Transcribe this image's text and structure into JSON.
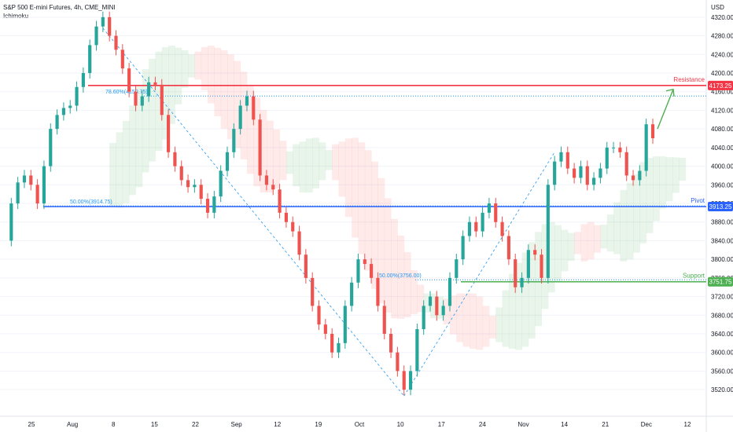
{
  "legend": {
    "title": "S&P 500 E-mini Futures, 4h, CME_MINI",
    "indicator": "Ichimoku"
  },
  "colors": {
    "up": "#26a69a",
    "down": "#ef5350",
    "resistance": "#f23645",
    "pivot": "#2962ff",
    "support": "#4caf50",
    "fib": "#2196f3",
    "cloud_green": "#4caf50",
    "cloud_red": "#ff5252",
    "arrow": "#4caf50",
    "grid": "#f0f3fa"
  },
  "chart_data": {
    "type": "line",
    "title": "S&P 500 E-mini Futures, 4h, CME_MINI",
    "currency_label": "USD",
    "ylim": [
      3500,
      4340
    ],
    "y_ticks": [
      4320,
      4280,
      4240,
      4200,
      4160,
      4120,
      4080,
      4040,
      4000,
      3960,
      3920,
      3880,
      3840,
      3800,
      3760,
      3720,
      3680,
      3640,
      3600,
      3560,
      3520
    ],
    "x_ticks": [
      "25",
      "Aug",
      "8",
      "15",
      "22",
      "Sep",
      "12",
      "19",
      "Oct",
      "10",
      "17",
      "24",
      "Nov",
      "14",
      "21",
      "Dec",
      "12"
    ],
    "series": [
      {
        "values": [
          3840,
          3920,
          3965,
          3980,
          3960,
          3920,
          4000,
          4080,
          4110,
          4125,
          4130,
          4170,
          4200,
          4260,
          4300,
          4320,
          4280,
          4250,
          4210,
          4160,
          4130,
          4150,
          4180,
          4175,
          4110,
          4030,
          4000,
          3970,
          3955,
          3960,
          3930,
          3900,
          3935,
          3990,
          4030,
          4080,
          4130,
          4150,
          4100,
          3980,
          3960,
          3950,
          3900,
          3880,
          3860,
          3810,
          3760,
          3700,
          3660,
          3640,
          3600,
          3620,
          3700,
          3750,
          3800,
          3790,
          3760,
          3700,
          3640,
          3600,
          3560,
          3520,
          3560,
          3650,
          3700,
          3720,
          3680,
          3700,
          3760,
          3800,
          3850,
          3880,
          3860,
          3900,
          3920,
          3880,
          3850,
          3800,
          3740,
          3760,
          3820,
          3810,
          3760,
          3960,
          4010,
          4030,
          3995,
          3975,
          4000,
          3960,
          3975,
          3995,
          4040,
          4040,
          4030,
          3980,
          3970,
          3990,
          4090,
          4060
        ]
      }
    ],
    "levels": [
      {
        "name": "Resistance",
        "value": 4173.25,
        "label": "4173.25"
      },
      {
        "name": "Pivot",
        "value": 3913.25,
        "label": "3913.25"
      },
      {
        "name": "Support",
        "value": 3751.75,
        "label": "3751.75"
      }
    ],
    "fib_labels": [
      {
        "text": "78.60%(4150.75)",
        "value": 4150.75
      },
      {
        "text": "50.00%(3914.75)",
        "value": 3914.75
      },
      {
        "text": "50.00%(3756.00)",
        "value": 3756.0
      }
    ]
  }
}
